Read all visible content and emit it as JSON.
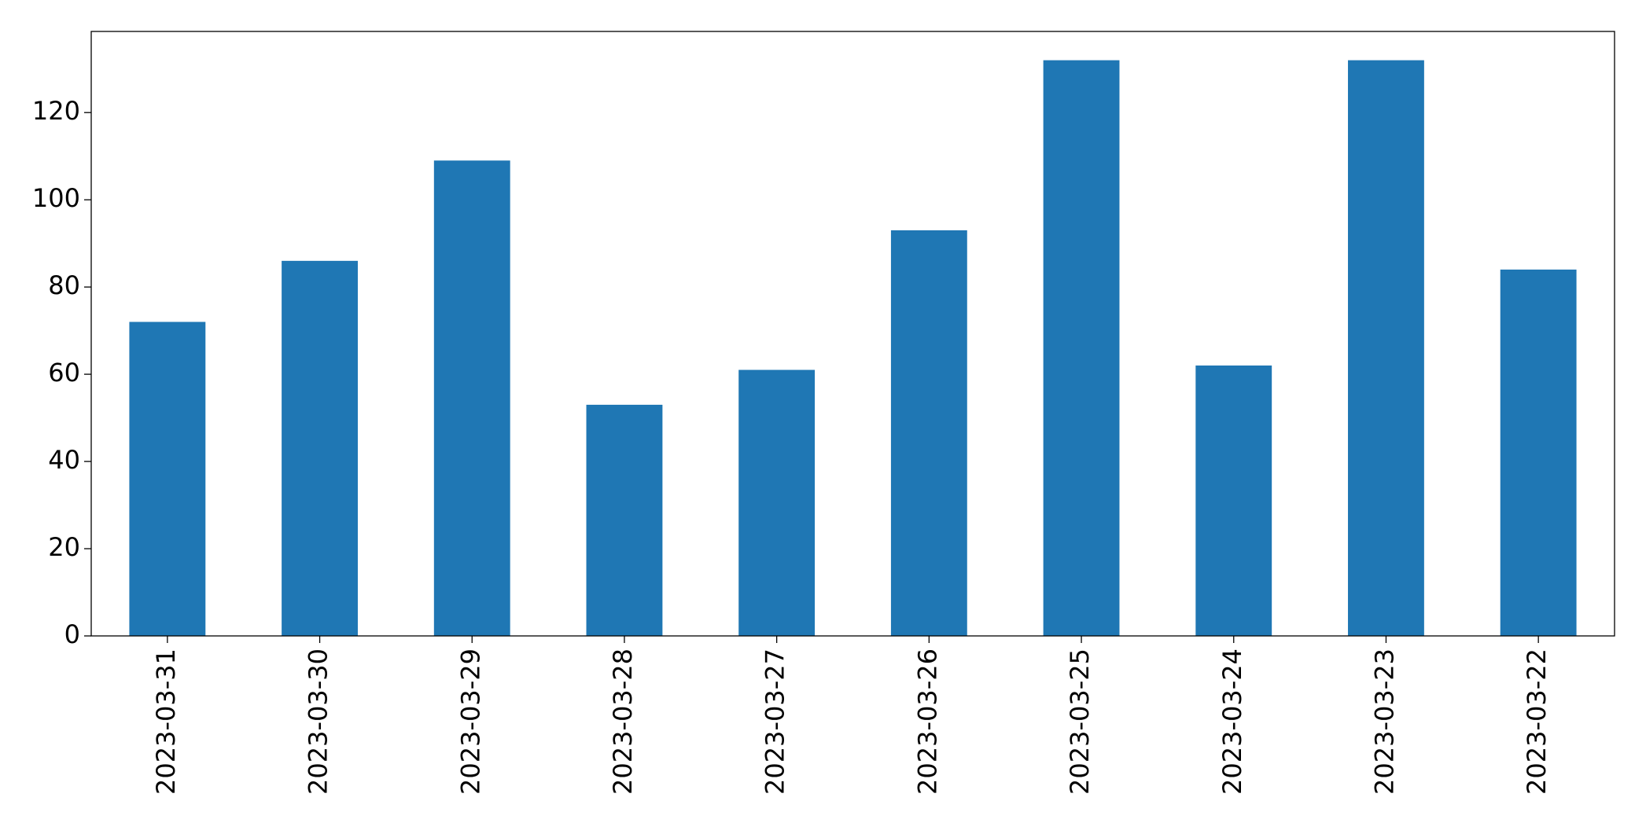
{
  "chart_data": {
    "type": "bar",
    "categories": [
      "2023-03-31",
      "2023-03-30",
      "2023-03-29",
      "2023-03-28",
      "2023-03-27",
      "2023-03-26",
      "2023-03-25",
      "2023-03-24",
      "2023-03-23",
      "2023-03-22"
    ],
    "values": [
      72,
      86,
      109,
      53,
      61,
      93,
      132,
      62,
      132,
      84
    ],
    "color": "#1f77b4",
    "ylim": [
      0,
      138.6
    ],
    "yticks": [
      0,
      20,
      40,
      60,
      80,
      100,
      120
    ],
    "grid": false
  }
}
